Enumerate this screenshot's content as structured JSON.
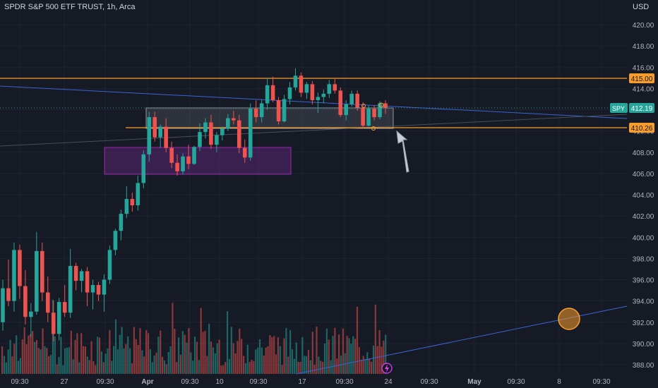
{
  "header": {
    "title": "SPDR S&P 500 ETF TRUST, 1h, Arca",
    "currency": "USD"
  },
  "price_axis": {
    "ticks": [
      "420.00",
      "418.00",
      "416.00",
      "414.00",
      "412.00",
      "410.00",
      "408.00",
      "406.00",
      "404.00",
      "402.00",
      "400.00",
      "398.00",
      "396.00",
      "394.00",
      "392.00",
      "390.00",
      "388.00"
    ],
    "labels": {
      "resistance": "415.00",
      "symbol": "SPY",
      "last": "412.19",
      "support": "410.26"
    }
  },
  "time_axis": {
    "ticks": [
      "09:30",
      "27",
      "09:30",
      "Apr",
      "09:30",
      "10",
      "09:30",
      "17",
      "09:30",
      "24",
      "09:30",
      "May",
      "09:30",
      "8",
      "09:30"
    ]
  },
  "colors": {
    "background": "#161a25",
    "up": "#26a69a",
    "down": "#ef5350",
    "accent_orange": "#f89d2c",
    "trendline_blue": "#3b63d6",
    "purple_zone": "#7b2f9b",
    "price_label_green": "#26a69a"
  },
  "icons": {
    "alert": "lightning-icon",
    "annotation": "arrow-icon",
    "marker": "circle-marker"
  },
  "chart_data": {
    "type": "candlestick",
    "title": "SPDR S&P 500 ETF TRUST, 1h, Arca",
    "ylim": [
      387.4,
      421.0
    ],
    "x_range": [
      0,
      100
    ],
    "drawing_lines": {
      "horizontal_resistance": 415.0,
      "horizontal_support": 410.26,
      "last_price": 412.19
    },
    "zones": [
      {
        "name": "consolidation-box",
        "x": [
          26,
          58
        ],
        "y": [
          410.3,
          412.5
        ]
      },
      {
        "name": "demand-zone",
        "x": [
          17,
          46
        ],
        "y": [
          406.0,
          408.3
        ]
      }
    ],
    "candles": [
      [
        392.0,
        396.0,
        391.2,
        395.2
      ],
      [
        395.2,
        397.9,
        393.5,
        394.0
      ],
      [
        394.0,
        399.5,
        393.0,
        398.8
      ],
      [
        398.8,
        399.3,
        394.2,
        395.4
      ],
      [
        395.4,
        396.9,
        391.8,
        392.5
      ],
      [
        392.5,
        393.8,
        390.6,
        393.0
      ],
      [
        393.0,
        400.5,
        392.7,
        398.7
      ],
      [
        398.7,
        399.5,
        394.0,
        394.8
      ],
      [
        394.8,
        396.3,
        392.0,
        392.9
      ],
      [
        392.9,
        394.0,
        390.2,
        390.9
      ],
      [
        390.9,
        394.3,
        390.3,
        393.9
      ],
      [
        393.9,
        395.5,
        392.5,
        392.9
      ],
      [
        392.9,
        398.9,
        392.4,
        397.3
      ],
      [
        397.3,
        397.6,
        395.0,
        395.9
      ],
      [
        395.9,
        397.0,
        394.8,
        396.8
      ],
      [
        396.8,
        397.2,
        393.5,
        394.8
      ],
      [
        394.8,
        396.0,
        393.2,
        395.5
      ],
      [
        395.5,
        395.8,
        394.0,
        394.6
      ],
      [
        394.6,
        396.5,
        393.0,
        396.0
      ],
      [
        396.0,
        399.2,
        395.6,
        398.8
      ],
      [
        398.8,
        400.8,
        398.3,
        400.6
      ],
      [
        400.6,
        402.6,
        399.7,
        402.2
      ],
      [
        402.2,
        404.8,
        401.8,
        403.6
      ],
      [
        403.6,
        404.2,
        402.4,
        403.0
      ],
      [
        403.0,
        405.8,
        402.5,
        405.1
      ],
      [
        405.1,
        408.2,
        404.6,
        407.8
      ],
      [
        407.8,
        411.8,
        407.1,
        411.3
      ],
      [
        411.3,
        411.8,
        409.0,
        409.4
      ],
      [
        409.4,
        410.6,
        408.4,
        410.4
      ],
      [
        410.4,
        411.2,
        408.0,
        408.4
      ],
      [
        408.4,
        409.0,
        406.5,
        407.0
      ],
      [
        407.0,
        407.8,
        405.8,
        406.2
      ],
      [
        406.2,
        407.9,
        405.9,
        407.6
      ],
      [
        407.6,
        408.7,
        406.4,
        406.9
      ],
      [
        406.9,
        408.6,
        406.8,
        408.5
      ],
      [
        408.5,
        410.7,
        408.1,
        409.9
      ],
      [
        409.9,
        411.2,
        409.3,
        410.8
      ],
      [
        410.8,
        411.5,
        408.3,
        408.7
      ],
      [
        408.7,
        409.9,
        408.0,
        409.6
      ],
      [
        409.6,
        410.4,
        409.1,
        410.2
      ],
      [
        410.2,
        411.6,
        410.0,
        411.2
      ],
      [
        411.2,
        411.9,
        410.6,
        411.0
      ],
      [
        411.0,
        411.5,
        407.9,
        408.4
      ],
      [
        408.4,
        409.2,
        407.0,
        407.5
      ],
      [
        407.5,
        412.6,
        407.2,
        412.1
      ],
      [
        412.1,
        412.9,
        410.8,
        411.3
      ],
      [
        411.3,
        413.0,
        410.8,
        412.6
      ],
      [
        412.6,
        415.0,
        412.0,
        414.3
      ],
      [
        414.3,
        415.1,
        412.7,
        412.9
      ],
      [
        412.9,
        413.2,
        410.6,
        410.9
      ],
      [
        410.9,
        413.4,
        410.8,
        413.0
      ],
      [
        413.0,
        414.6,
        412.5,
        414.1
      ],
      [
        414.1,
        415.9,
        413.8,
        415.2
      ],
      [
        415.2,
        415.5,
        413.2,
        413.6
      ],
      [
        413.6,
        414.6,
        413.0,
        414.4
      ],
      [
        414.4,
        414.7,
        412.5,
        412.9
      ],
      [
        412.9,
        413.6,
        411.7,
        413.2
      ],
      [
        413.2,
        413.9,
        412.6,
        413.5
      ],
      [
        413.5,
        414.8,
        413.1,
        414.4
      ],
      [
        414.4,
        415.0,
        413.5,
        413.8
      ],
      [
        413.8,
        414.1,
        411.3,
        411.5
      ],
      [
        411.5,
        412.9,
        411.0,
        412.5
      ],
      [
        412.5,
        413.8,
        412.3,
        413.5
      ],
      [
        413.5,
        413.8,
        411.9,
        412.2
      ],
      [
        412.2,
        412.7,
        410.2,
        410.5
      ],
      [
        410.5,
        412.4,
        410.4,
        412.1
      ],
      [
        412.1,
        412.4,
        411.0,
        411.3
      ],
      [
        411.3,
        412.8,
        411.1,
        412.6
      ],
      [
        412.6,
        412.9,
        411.6,
        412.19
      ]
    ],
    "volume_bars": 190
  }
}
